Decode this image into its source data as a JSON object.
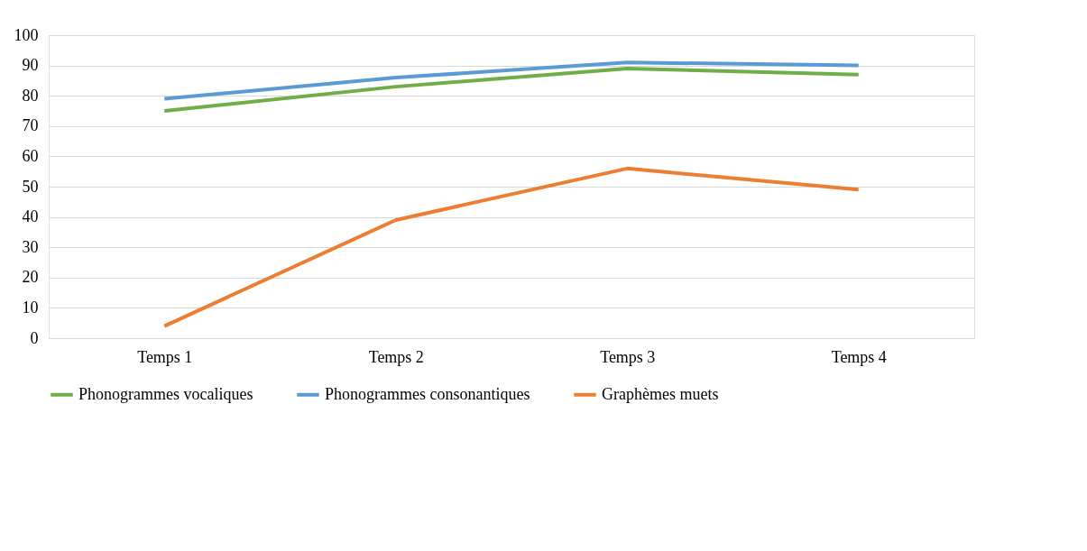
{
  "chart_data": {
    "type": "line",
    "categories": [
      "Temps 1",
      "Temps 2",
      "Temps 3",
      "Temps 4"
    ],
    "series": [
      {
        "name": "Phonogrammes vocaliques",
        "color": "#70ad47",
        "values": [
          75,
          83,
          89,
          87
        ]
      },
      {
        "name": "Phonogrammes consonantiques",
        "color": "#5b9bd5",
        "values": [
          79,
          86,
          91,
          90
        ]
      },
      {
        "name": "Graphèmes muets",
        "color": "#ed7d31",
        "values": [
          4,
          39,
          56,
          49
        ]
      }
    ],
    "ylim": [
      0,
      100
    ],
    "yticks": [
      0,
      10,
      20,
      30,
      40,
      50,
      60,
      70,
      80,
      90,
      100
    ],
    "grid": "y",
    "legend": "bottom",
    "marker": "none",
    "line_style": "solid"
  }
}
